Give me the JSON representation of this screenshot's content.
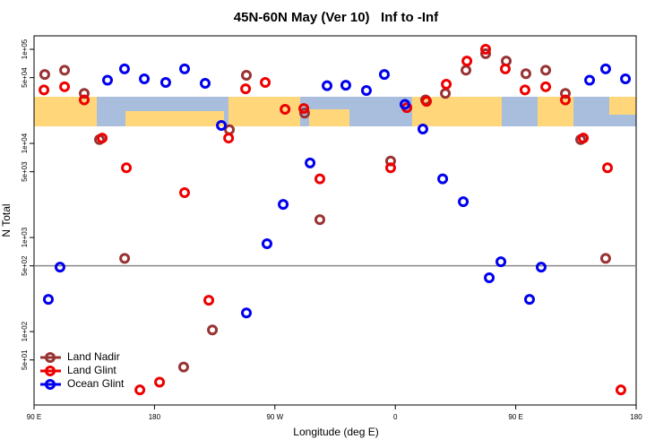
{
  "chart_data": {
    "type": "scatter",
    "title": "45N-60N May (Ver 10)   Inf to -Inf",
    "xlabel": "Longitude (deg E)",
    "ylabel": "N Total",
    "xlim": [
      90,
      540
    ],
    "ylim": [
      16.6,
      139000
    ],
    "yscale": "log",
    "xticks": [
      {
        "value": 90,
        "label": "90 E"
      },
      180,
      {
        "value": 270,
        "label": "90 W"
      },
      {
        "value": 360,
        "label": "0"
      },
      {
        "value": 450,
        "label": "90 E"
      },
      {
        "value": 540,
        "label": "180"
      }
    ],
    "yticks": [
      {
        "value": 100000,
        "label": "1e+05"
      },
      {
        "value": 50000,
        "label": "5e+04"
      },
      {
        "value": 10000,
        "label": "1e+04"
      },
      {
        "value": 5000,
        "label": "5e+03"
      },
      {
        "value": 1000,
        "label": "1e+03"
      },
      {
        "value": 500,
        "label": "5e+02"
      },
      {
        "value": 100,
        "label": "1e+02"
      },
      {
        "value": 50,
        "label": "5e+01"
      }
    ],
    "hline": 500,
    "legend": "lower left",
    "series": [
      {
        "name": "Land Nadir",
        "color": "#993333",
        "x": [
          98.0,
          112.8,
          127.5,
          138.9,
          157.7,
          201.8,
          223.3,
          236.0,
          248.7,
          292.2,
          303.6,
          356.5,
          382.6,
          397.4,
          412.8,
          427.5,
          442.9,
          457.6,
          472.4,
          487.1,
          498.5,
          517.2
        ],
        "values": [
          54000,
          60000,
          34000,
          11000,
          600,
          42,
          104,
          14000,
          53000,
          21000,
          1550,
          6500,
          29000,
          34000,
          60000,
          90000,
          75000,
          55000,
          60000,
          34000,
          11000,
          600
        ]
      },
      {
        "name": "Land Glint",
        "color": "#ee0000",
        "x": [
          97.4,
          112.8,
          127.5,
          140.9,
          159.0,
          169.1,
          183.8,
          202.5,
          220.6,
          235.4,
          248.1,
          262.8,
          277.6,
          291.6,
          303.6,
          356.5,
          368.6,
          383.3,
          398.1,
          413.5,
          427.5,
          442.2,
          456.9,
          472.4,
          487.1,
          500.5,
          518.6,
          528.6
        ],
        "values": [
          37000,
          40000,
          29000,
          11400,
          5500,
          24,
          29,
          3000,
          215,
          11400,
          38000,
          44500,
          23000,
          23500,
          4200,
          5500,
          24000,
          28000,
          42500,
          75000,
          100000,
          62000,
          37000,
          40000,
          29000,
          11400,
          5500,
          24
        ]
      },
      {
        "name": "Ocean Glint",
        "color": "#0000ee",
        "x": [
          100.7,
          109.4,
          144.9,
          157.6,
          172.4,
          188.4,
          202.5,
          217.9,
          230.0,
          248.7,
          264.1,
          276.2,
          296.3,
          309.0,
          323.0,
          338.4,
          351.8,
          367.2,
          380.6,
          395.4,
          410.8,
          430.2,
          438.9,
          460.3,
          469.0,
          505.2,
          517.2,
          532.0
        ],
        "values": [
          220,
          485,
          47000,
          62000,
          48500,
          44500,
          62000,
          43500,
          15500,
          158,
          860,
          2250,
          6200,
          41000,
          41500,
          36500,
          54000,
          26000,
          14200,
          4200,
          2400,
          373,
          553,
          220,
          485,
          47000,
          62000,
          48500
        ]
      }
    ]
  }
}
